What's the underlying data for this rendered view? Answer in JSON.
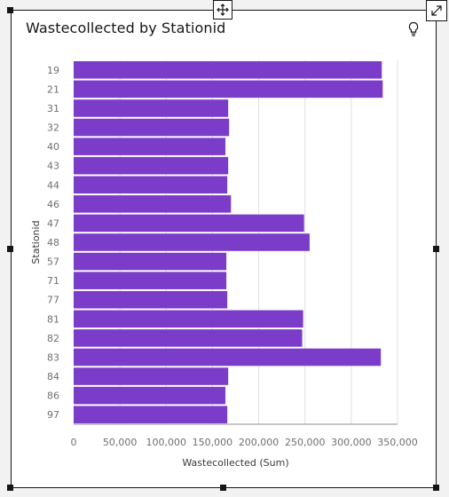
{
  "tile": {
    "title": "Wastecollected by Stationid",
    "icons": {
      "move": "move-arrows-icon",
      "expand": "expand-diagonal-icon",
      "insight": "lightbulb-icon"
    }
  },
  "colors": {
    "bar": "#7c3cca",
    "grid": "#e0e0e0",
    "border": "#161616"
  },
  "chart_data": {
    "type": "bar",
    "orientation": "horizontal",
    "xlabel": "Wastecollected (Sum)",
    "ylabel": "Stationid",
    "xlim": [
      0,
      350000
    ],
    "x_ticks": [
      0,
      50000,
      100000,
      150000,
      200000,
      250000,
      300000,
      350000
    ],
    "x_tick_labels": [
      "0",
      "50,000",
      "100,000",
      "150,000",
      "200,000",
      "250,000",
      "300,000",
      "350,000"
    ],
    "grid": true,
    "categories": [
      "19",
      "21",
      "31",
      "32",
      "40",
      "43",
      "44",
      "46",
      "47",
      "48",
      "57",
      "71",
      "77",
      "81",
      "82",
      "83",
      "84",
      "86",
      "97"
    ],
    "values": [
      333000,
      334000,
      167000,
      168000,
      164000,
      167000,
      166000,
      170000,
      249000,
      255000,
      165000,
      165000,
      166000,
      248000,
      247000,
      332000,
      167000,
      164000,
      166000
    ]
  }
}
